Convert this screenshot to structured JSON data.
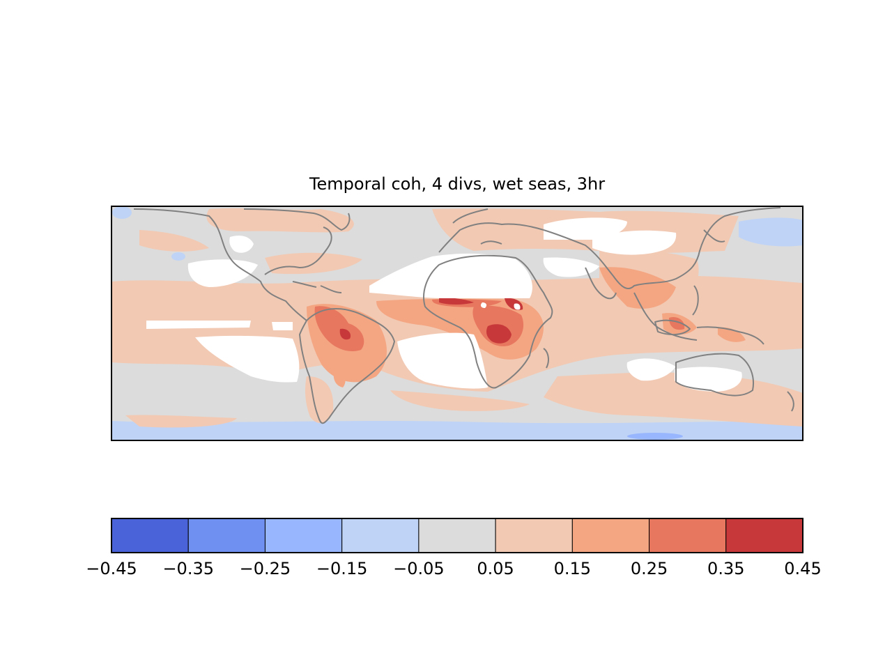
{
  "figure": {
    "title": "Temporal coh, 4 divs, wet seas, 3hr"
  },
  "colorbar": {
    "levels": [
      -0.45,
      -0.35,
      -0.25,
      -0.15,
      -0.05,
      0.05,
      0.15,
      0.25,
      0.35,
      0.45
    ],
    "tick_labels": [
      "−0.45",
      "−0.35",
      "−0.25",
      "−0.15",
      "−0.05",
      "0.05",
      "0.15",
      "0.25",
      "0.35",
      "0.45"
    ],
    "colors": [
      "#4a63d8",
      "#6f90f0",
      "#98b6fd",
      "#bfd3f6",
      "#dcdcdc",
      "#f2c9b3",
      "#f4a683",
      "#e7775e",
      "#c7383a"
    ]
  },
  "map": {
    "projection": "plate-carree",
    "extent": "tropics and mid-latitudes",
    "coastline_color": "#808080",
    "missing_color": "#ffffff"
  }
}
